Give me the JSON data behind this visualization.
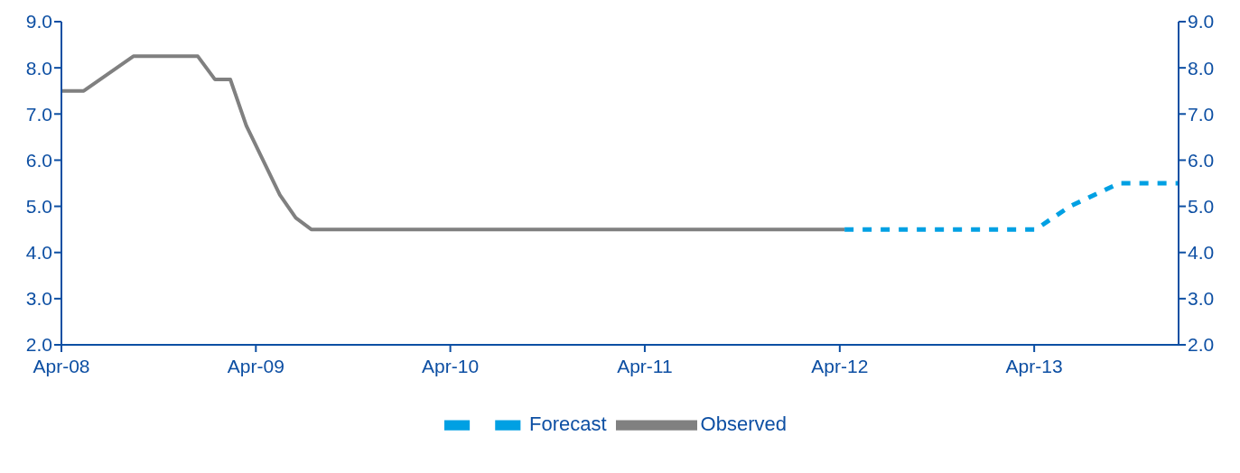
{
  "chart_data": {
    "type": "line",
    "x": [
      "2008-04-01",
      "2008-05-13",
      "2008-08-14",
      "2008-12-13",
      "2009-01-14",
      "2009-02-12",
      "2009-03-14",
      "2009-05-16",
      "2009-06-15",
      "2009-07-14",
      "2012-04-10"
    ],
    "series": [
      {
        "name": "Observed",
        "color": "#808080",
        "line_style": "solid",
        "values": [
          7.5,
          7.5,
          8.25,
          8.25,
          7.75,
          7.75,
          6.75,
          5.25,
          4.75,
          4.5,
          4.5
        ]
      },
      {
        "name": "Forecast",
        "color": "#00a0e3",
        "line_style": "dashed",
        "x": [
          "2012-04-10",
          "2013-04-04",
          "2013-06-07",
          "2013-09-08",
          "2013-12-28"
        ],
        "values": [
          4.5,
          4.5,
          5.0,
          5.5,
          5.5
        ]
      }
    ],
    "xlim": [
      "2008-04-01",
      "2013-12-28"
    ],
    "xticks": [
      {
        "value": "2008-04-01",
        "label": "Apr-08"
      },
      {
        "value": "2009-04-01",
        "label": "Apr-09"
      },
      {
        "value": "2010-04-01",
        "label": "Apr-10"
      },
      {
        "value": "2011-04-01",
        "label": "Apr-11"
      },
      {
        "value": "2012-04-01",
        "label": "Apr-12"
      },
      {
        "value": "2013-04-01",
        "label": "Apr-13"
      }
    ],
    "ylim": [
      2,
      9
    ],
    "yticks": [
      {
        "value": 2,
        "label": "2.0"
      },
      {
        "value": 3,
        "label": "3.0"
      },
      {
        "value": 4,
        "label": "4.0"
      },
      {
        "value": 5,
        "label": "5.0"
      },
      {
        "value": 6,
        "label": "6.0"
      },
      {
        "value": 7,
        "label": "7.0"
      },
      {
        "value": 8,
        "label": "8.0"
      },
      {
        "value": 9,
        "label": "9.0"
      }
    ],
    "y2lim": [
      2,
      9
    ],
    "y2ticks": [
      {
        "value": 2,
        "label": "2.0"
      },
      {
        "value": 3,
        "label": "3.0"
      },
      {
        "value": 4,
        "label": "4.0"
      },
      {
        "value": 5,
        "label": "5.0"
      },
      {
        "value": 6,
        "label": "6.0"
      },
      {
        "value": 7,
        "label": "7.0"
      },
      {
        "value": 8,
        "label": "8.0"
      },
      {
        "value": 9,
        "label": "9.0"
      }
    ],
    "grid": false,
    "legend": "bottom"
  }
}
